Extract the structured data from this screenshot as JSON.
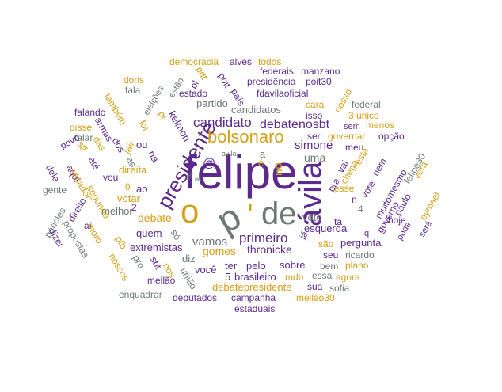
{
  "palette": {
    "purple": "#5b2a8c",
    "gold": "#d4a019",
    "gray": "#6d7a73"
  },
  "words": [
    {
      "text": "felipe",
      "color": "purple"
    },
    {
      "text": "o",
      "color": "gold"
    },
    {
      "text": "p",
      "color": "gray"
    },
    {
      "text": "de",
      "color": "gray"
    },
    {
      "text": "'",
      "color": "gold"
    },
    {
      "text": "ávila",
      "color": "purple"
    },
    {
      "text": "presidente",
      "color": "purple"
    },
    {
      "text": "bolsonaro",
      "color": "gold"
    },
    {
      "text": "candidato",
      "color": "purple"
    },
    {
      "text": "debatenosbt",
      "color": "purple"
    },
    {
      "text": "primeiro",
      "color": "purple"
    },
    {
      "text": "simone",
      "color": "purple"
    },
    {
      "text": "vamos",
      "color": "gray"
    },
    {
      "text": "@",
      "color": "purple"
    },
    {
      "text": "debate",
      "color": "gold"
    },
    {
      "text": "direita",
      "color": "gold"
    },
    {
      "text": "thronicke",
      "color": "purple"
    },
    {
      "text": "gomes",
      "color": "gold"
    },
    {
      "text": "uma",
      "color": "gray"
    },
    {
      "text": "esquerda",
      "color": "purple"
    },
    {
      "text": "candidatos",
      "color": "gray"
    },
    {
      "text": "partido",
      "color": "gray"
    },
    {
      "text": "kelmon",
      "color": "purple"
    },
    {
      "text": "no",
      "color": "gold"
    },
    {
      "text": "é",
      "color": "gold"
    },
    {
      "text": "a",
      "color": "gray"
    },
    {
      "text": "ou",
      "color": "purple"
    },
    {
      "text": "na",
      "color": "purple"
    },
    {
      "text": "votar",
      "color": "gold"
    },
    {
      "text": "quem",
      "color": "purple"
    },
    {
      "text": "extremistas",
      "color": "purple"
    },
    {
      "text": "voto",
      "color": "gray"
    },
    {
      "text": "pergunta",
      "color": "purple"
    },
    {
      "text": "ter",
      "color": "purple"
    },
    {
      "text": "pelo",
      "color": "purple"
    },
    {
      "text": "sobre",
      "color": "purple"
    },
    {
      "text": "você",
      "color": "purple"
    },
    {
      "text": "diz",
      "color": "gray"
    },
    {
      "text": "brasileiro",
      "color": "purple"
    },
    {
      "text": "5",
      "color": "purple"
    },
    {
      "text": "debatepresidente",
      "color": "gold"
    },
    {
      "text": "deputados",
      "color": "purple"
    },
    {
      "text": "campanha",
      "color": "purple"
    },
    {
      "text": "estaduais",
      "color": "purple"
    },
    {
      "text": "enquadrar",
      "color": "gray"
    },
    {
      "text": "mellão30",
      "color": "gold"
    },
    {
      "text": "mdb",
      "color": "gold"
    },
    {
      "text": "sua",
      "color": "purple"
    },
    {
      "text": "sofia",
      "color": "gray"
    },
    {
      "text": "agora",
      "color": "gold"
    },
    {
      "text": "essa",
      "color": "gray"
    },
    {
      "text": "bem",
      "color": "gray"
    },
    {
      "text": "plano",
      "color": "gold"
    },
    {
      "text": "seu",
      "color": "purple"
    },
    {
      "text": "ricardo",
      "color": "gray"
    },
    {
      "text": "são",
      "color": "gold"
    },
    {
      "text": "tá",
      "color": "purple"
    },
    {
      "text": "n",
      "color": "purple"
    },
    {
      "text": "4",
      "color": "gray"
    },
    {
      "text": "esse",
      "color": "gold"
    },
    {
      "text": "ser",
      "color": "purple"
    },
    {
      "text": "governar",
      "color": "gold"
    },
    {
      "text": "meu",
      "color": "purple"
    },
    {
      "text": "opção",
      "color": "purple"
    },
    {
      "text": "menos",
      "color": "gold"
    },
    {
      "text": "sem",
      "color": "purple"
    },
    {
      "text": "federal",
      "color": "gray"
    },
    {
      "text": "cara",
      "color": "gold"
    },
    {
      "text": "isso",
      "color": "purple"
    },
    {
      "text": "fdavilaoficial",
      "color": "purple"
    },
    {
      "text": "presidência",
      "color": "purple"
    },
    {
      "text": "poit30",
      "color": "purple"
    },
    {
      "text": "federais",
      "color": "purple"
    },
    {
      "text": "manzano",
      "color": "purple"
    },
    {
      "text": "democracia",
      "color": "gold"
    },
    {
      "text": "alves",
      "color": "purple"
    },
    {
      "text": "todos",
      "color": "gold"
    },
    {
      "text": "estado",
      "color": "purple"
    },
    {
      "text": "doris",
      "color": "gold"
    },
    {
      "text": "fala",
      "color": "gray"
    },
    {
      "text": "falando",
      "color": "purple"
    },
    {
      "text": "disse",
      "color": "gold"
    },
    {
      "text": "falar",
      "color": "gray"
    },
    {
      "text": "povo",
      "color": "purple"
    },
    {
      "text": "dele",
      "color": "purple"
    },
    {
      "text": "gente",
      "color": "gray"
    },
    {
      "text": "aqui",
      "color": "purple"
    },
    {
      "text": "até",
      "color": "purple"
    },
    {
      "text": "vou",
      "color": "purple"
    },
    {
      "text": "melhor",
      "color": "gray"
    },
    {
      "text": "ao",
      "color": "purple"
    },
    {
      "text": "0",
      "color": "gold"
    },
    {
      "text": "2",
      "color": "purple"
    },
    {
      "text": "aí",
      "color": "purple"
    },
    {
      "text": "pro",
      "color": "gray"
    },
    {
      "text": "sbt",
      "color": "purple"
    },
    {
      "text": "mellão",
      "color": "purple"
    },
    {
      "text": "hoje",
      "color": "purple"
    },
    {
      "text": "avila",
      "color": "gray"
    },
    {
      "text": "nem",
      "color": "purple"
    },
    {
      "text": "muito",
      "color": "purple"
    },
    {
      "text": "vote",
      "color": "purple"
    },
    {
      "text": "está",
      "color": "gold"
    },
    {
      "text": "chega",
      "color": "gold"
    },
    {
      "text": "pra",
      "color": "purple"
    },
    {
      "text": "vai",
      "color": "purple"
    },
    {
      "text": "governo",
      "color": "purple"
    },
    {
      "text": "mesmo",
      "color": "purple"
    },
    {
      "text": "paulo",
      "color": "purple"
    },
    {
      "text": "felipe30",
      "color": "gray"
    },
    {
      "text": "vera",
      "color": "gold"
    },
    {
      "text": "eymael",
      "color": "gold"
    },
    {
      "text": "será",
      "color": "purple"
    },
    {
      "text": "pode",
      "color": "purple"
    },
    {
      "text": "q",
      "color": "purple"
    },
    {
      "text": "3 único",
      "color": "gold"
    },
    {
      "text": "nosso",
      "color": "gold"
    },
    {
      "text": "país",
      "color": "purple"
    },
    {
      "text": "poit",
      "color": "purple"
    },
    {
      "text": "pl",
      "color": "purple"
    },
    {
      "text": "pdt",
      "color": "gold"
    },
    {
      "text": "estão",
      "color": "gray"
    },
    {
      "text": "eleições",
      "color": "gray"
    },
    {
      "text": "pt",
      "color": "gold"
    },
    {
      "text": "foi",
      "color": "gold"
    },
    {
      "text": "jair",
      "color": "gold"
    },
    {
      "text": "também",
      "color": "gold"
    },
    {
      "text": "armas",
      "color": "purple"
    },
    {
      "text": "dos",
      "color": "purple"
    },
    {
      "text": "as",
      "color": "gray"
    },
    {
      "text": "stf",
      "color": "gold"
    },
    {
      "text": "senador",
      "color": "gold"
    },
    {
      "text": "das",
      "color": "gold"
    },
    {
      "text": "segundo",
      "color": "gold"
    },
    {
      "text": "moro",
      "color": "gold"
    },
    {
      "text": "ptb",
      "color": "gold"
    },
    {
      "text": "nossos",
      "color": "gold"
    },
    {
      "text": "propostas",
      "color": "gray"
    },
    {
      "text": "direito",
      "color": "purple"
    },
    {
      "text": "dizer",
      "color": "purple"
    },
    {
      "text": "péricles",
      "color": "gray"
    },
    {
      "text": "nos",
      "color": "gold"
    },
    {
      "text": "união",
      "color": "gray"
    },
    {
      "text": "só",
      "color": "gray"
    },
    {
      "text": "já",
      "color": "purple"
    },
    {
      "text": "do",
      "color": "gray"
    },
    {
      "text": "não",
      "color": "gray"
    }
  ]
}
